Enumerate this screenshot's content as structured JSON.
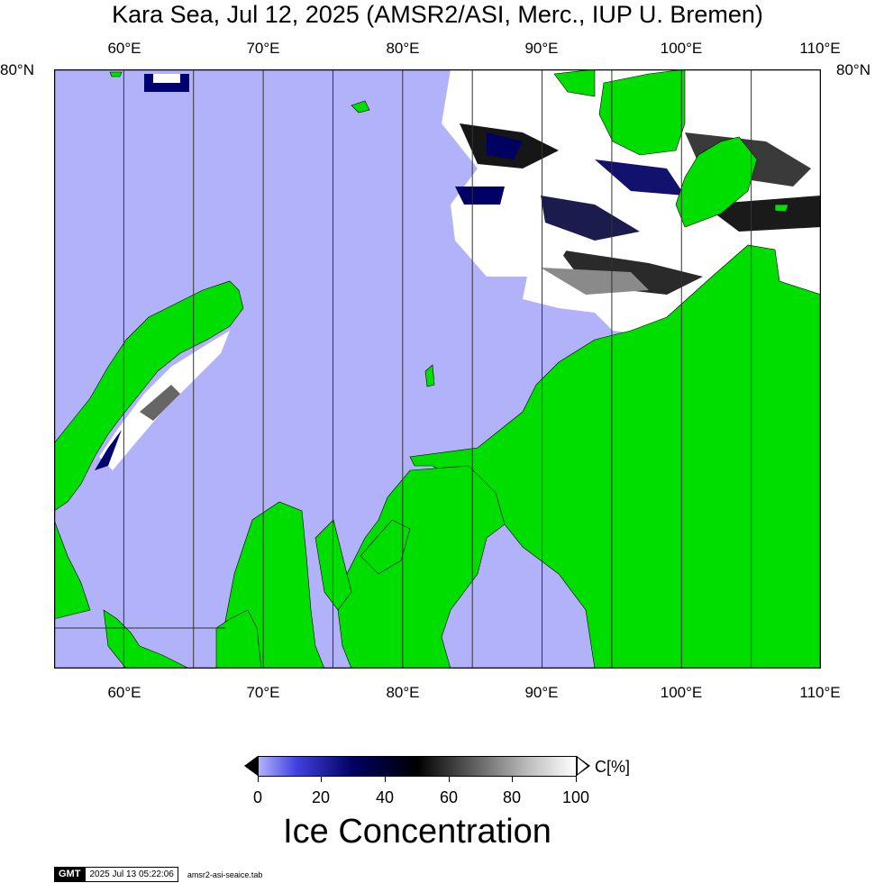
{
  "title": "Kara Sea, Jul 12, 2025 (AMSR2/ASI, Merc., IUP U. Bremen)",
  "map": {
    "projection": "Mercator",
    "lon_range": [
      55,
      110
    ],
    "lat_top_label": "80°N",
    "lon_gridlines": [
      60,
      65,
      70,
      75,
      80,
      85,
      90,
      95,
      100,
      105,
      110
    ],
    "lon_labels": [
      "60°E",
      "70°E",
      "80°E",
      "90°E",
      "100°E",
      "110°E"
    ],
    "colors": {
      "open_water": "#b2b2fb",
      "land": "#00de00",
      "ice_high": "#ffffff",
      "ice_low": "#000060"
    }
  },
  "legend": {
    "unit": "C[%]",
    "ticks": [
      "0",
      "20",
      "40",
      "60",
      "80",
      "100"
    ],
    "title": "Ice Concentration"
  },
  "footer": {
    "logo": "GMT",
    "timestamp": "2025 Jul 13 05:22:06",
    "filename": "amsr2-asi-seaice.tab"
  }
}
